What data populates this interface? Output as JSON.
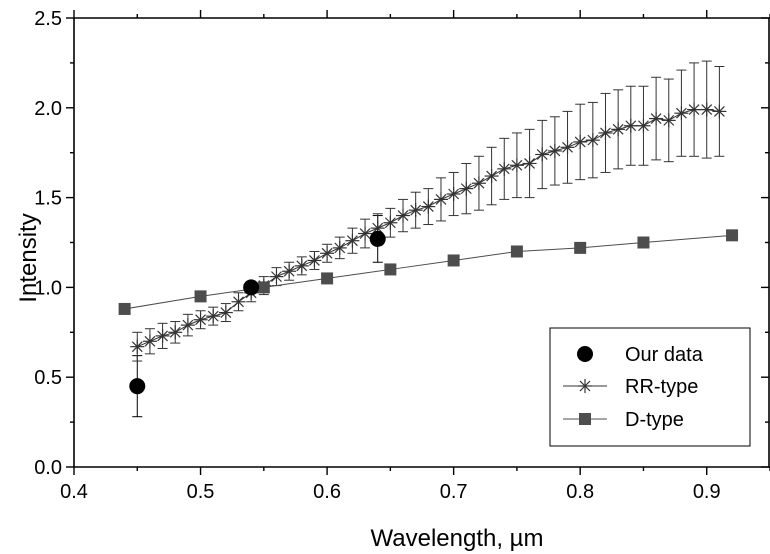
{
  "chart_data": {
    "type": "scatter",
    "title": "",
    "xlabel": "Wavelength, µm",
    "ylabel": "Intensity",
    "xlim": [
      0.4,
      0.95
    ],
    "ylim": [
      0.0,
      2.5
    ],
    "xticks": [
      "0.4",
      "0.5",
      "0.6",
      "0.7",
      "0.8",
      "0.9"
    ],
    "yticks": [
      "0.0",
      "0.5",
      "1.0",
      "1.5",
      "2.0",
      "2.5"
    ],
    "grid": false,
    "legend_position": "bottom-right",
    "series": [
      {
        "name": "Our data",
        "marker": "filled-circle",
        "line": false,
        "x": [
          0.45,
          0.54,
          0.64
        ],
        "y": [
          0.45,
          1.0,
          1.27
        ],
        "err": [
          0.17,
          0.0,
          0.13
        ]
      },
      {
        "name": "RR-type",
        "marker": "asterisk",
        "line": true,
        "x": [
          0.45,
          0.46,
          0.47,
          0.48,
          0.49,
          0.5,
          0.51,
          0.52,
          0.53,
          0.54,
          0.55,
          0.56,
          0.57,
          0.58,
          0.59,
          0.6,
          0.61,
          0.62,
          0.63,
          0.64,
          0.65,
          0.66,
          0.67,
          0.68,
          0.69,
          0.7,
          0.71,
          0.72,
          0.73,
          0.74,
          0.75,
          0.76,
          0.77,
          0.78,
          0.79,
          0.8,
          0.81,
          0.82,
          0.83,
          0.84,
          0.85,
          0.86,
          0.87,
          0.88,
          0.89,
          0.9,
          0.91
        ],
        "y": [
          0.67,
          0.7,
          0.73,
          0.75,
          0.79,
          0.82,
          0.84,
          0.86,
          0.92,
          0.97,
          1.01,
          1.06,
          1.09,
          1.12,
          1.15,
          1.19,
          1.22,
          1.26,
          1.3,
          1.33,
          1.36,
          1.4,
          1.43,
          1.45,
          1.49,
          1.52,
          1.55,
          1.58,
          1.62,
          1.66,
          1.68,
          1.69,
          1.74,
          1.76,
          1.78,
          1.81,
          1.82,
          1.86,
          1.88,
          1.9,
          1.9,
          1.94,
          1.93,
          1.97,
          1.99,
          1.99,
          1.98
        ],
        "err": [
          0.08,
          0.07,
          0.07,
          0.06,
          0.06,
          0.05,
          0.05,
          0.05,
          0.05,
          0.05,
          0.05,
          0.05,
          0.05,
          0.05,
          0.05,
          0.05,
          0.06,
          0.07,
          0.08,
          0.08,
          0.08,
          0.09,
          0.1,
          0.1,
          0.12,
          0.12,
          0.14,
          0.15,
          0.16,
          0.17,
          0.18,
          0.19,
          0.19,
          0.19,
          0.2,
          0.21,
          0.21,
          0.22,
          0.22,
          0.22,
          0.22,
          0.23,
          0.23,
          0.24,
          0.26,
          0.27,
          0.25
        ]
      },
      {
        "name": "D-type",
        "marker": "filled-square",
        "line": true,
        "x": [
          0.44,
          0.5,
          0.55,
          0.6,
          0.65,
          0.7,
          0.75,
          0.8,
          0.85,
          0.92
        ],
        "y": [
          0.88,
          0.95,
          1.0,
          1.05,
          1.1,
          1.15,
          1.2,
          1.22,
          1.25,
          1.29
        ],
        "err": []
      }
    ]
  },
  "colors": {
    "our_data": "#000000",
    "rr_type": "#333333",
    "d_type": "#4d4d4d",
    "axis": "#000000"
  }
}
